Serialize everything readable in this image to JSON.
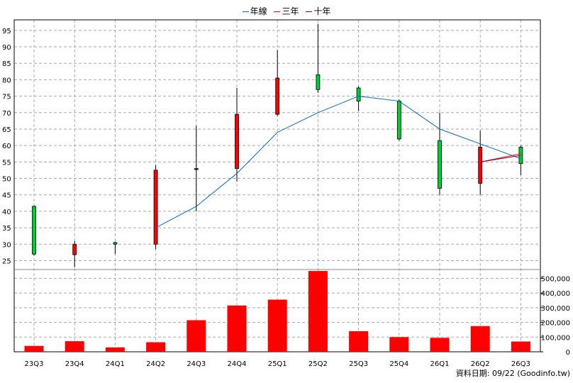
{
  "legend": [
    {
      "label": "年線",
      "color": "#0066cc"
    },
    {
      "label": "三年",
      "color": "#ff0000"
    },
    {
      "label": "十年",
      "color": "#880044"
    }
  ],
  "credit": "資料日期: 09/22 (Goodinfo.tw)",
  "colors": {
    "up": "#ff0000",
    "down": "#00cc33",
    "volume": "#ff0000",
    "grid": "#aaaaaa"
  },
  "chart_data": [
    {
      "type": "candlestick",
      "categories": [
        "23Q3",
        "23Q4",
        "24Q1",
        "24Q2",
        "24Q3",
        "24Q4",
        "25Q1",
        "25Q2",
        "25Q3",
        "25Q4",
        "26Q1",
        "26Q2",
        "26Q3"
      ],
      "ohlc": [
        {
          "open": 41.5,
          "high": 41.8,
          "low": 26.5,
          "close": 27.0
        },
        {
          "open": 26.8,
          "high": 31.0,
          "low": 23.0,
          "close": 30.0
        },
        {
          "open": 30.5,
          "high": 30.8,
          "low": 27.0,
          "close": 30.0
        },
        {
          "open": 30.0,
          "high": 54.0,
          "low": 28.5,
          "close": 52.5
        },
        {
          "open": 53.0,
          "high": 66.0,
          "low": 40.0,
          "close": 53.0
        },
        {
          "open": 53.0,
          "high": 77.5,
          "low": 49.0,
          "close": 69.5
        },
        {
          "open": 69.5,
          "high": 89.0,
          "low": 69.0,
          "close": 80.5
        },
        {
          "open": 81.5,
          "high": 97.0,
          "low": 76.0,
          "close": 77.0
        },
        {
          "open": 77.5,
          "high": 78.0,
          "low": 70.5,
          "close": 73.5
        },
        {
          "open": 73.5,
          "high": 74.0,
          "low": 61.5,
          "close": 62.0
        },
        {
          "open": 61.5,
          "high": 70.0,
          "low": 45.0,
          "close": 47.0
        },
        {
          "open": 48.5,
          "high": 64.5,
          "low": 45.0,
          "close": 59.5
        },
        {
          "open": 59.5,
          "high": 60.0,
          "low": 51.0,
          "close": 54.5
        }
      ],
      "yticks": [
        25,
        30,
        35,
        40,
        45,
        50,
        55,
        60,
        65,
        70,
        75,
        80,
        85,
        90,
        95
      ],
      "ylim": [
        22.3,
        98.2
      ],
      "lines": [
        {
          "name": "年線",
          "x_start": 3,
          "values": [
            35.0,
            41.5,
            51.5,
            64.0,
            70.0,
            75.0,
            73.5,
            65.0,
            60.5,
            56.0
          ]
        },
        {
          "name": "三年",
          "x_start": 11,
          "values": [
            55.0,
            57.5
          ]
        },
        {
          "name": "十年",
          "x_start": 11,
          "values": [
            55.0,
            57.0
          ]
        }
      ],
      "grid": true
    },
    {
      "type": "bar",
      "categories": [
        "23Q3",
        "23Q4",
        "24Q1",
        "24Q2",
        "24Q3",
        "24Q4",
        "25Q1",
        "25Q2",
        "25Q3",
        "25Q4",
        "26Q1",
        "26Q2",
        "26Q3"
      ],
      "values": [
        40000,
        72000,
        30000,
        65000,
        215000,
        315000,
        355000,
        550000,
        140000,
        100000,
        95000,
        175000,
        70000
      ],
      "yticks": [
        0,
        100000,
        200000,
        300000,
        400000,
        500000
      ],
      "ytick_labels": [
        "0",
        "100,000",
        "200,000",
        "300,000",
        "400,000",
        "500,000"
      ],
      "ylim": [
        0,
        560000
      ],
      "grid": true
    }
  ]
}
